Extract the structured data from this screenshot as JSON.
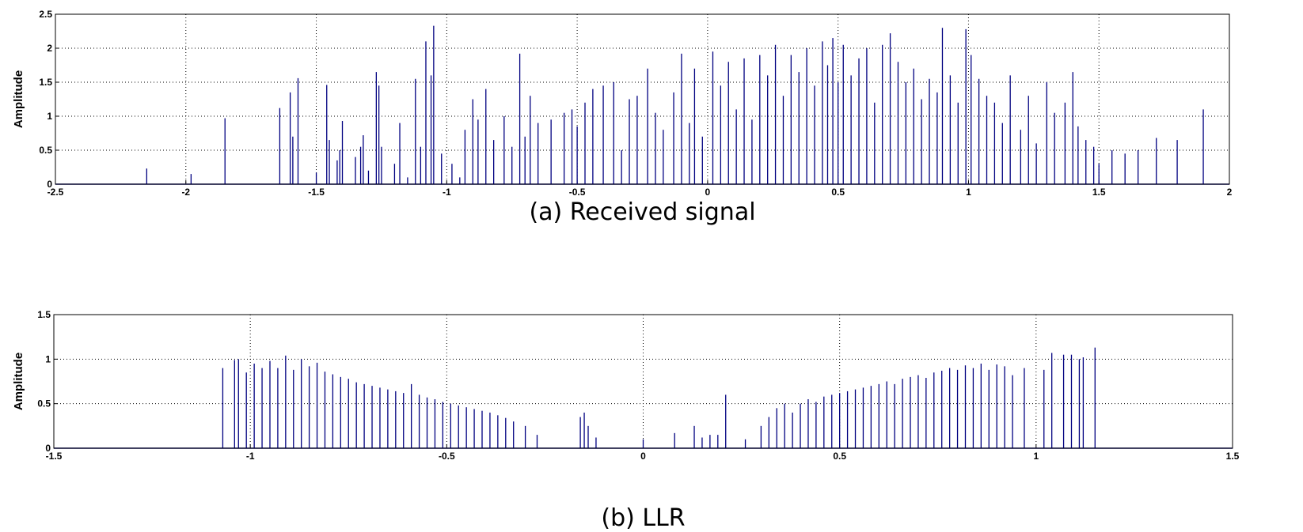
{
  "chart_data": [
    {
      "type": "stem",
      "caption": "(a) Received signal",
      "y_label": "Amplitude",
      "color": "#000080",
      "grid": true,
      "xlim": [
        -2.5,
        2
      ],
      "xticks": [
        -2.5,
        -2,
        -1.5,
        -1,
        -0.5,
        0,
        0.5,
        1,
        1.5,
        2
      ],
      "ylim": [
        0,
        2.5
      ],
      "yticks": [
        0,
        0.5,
        1,
        1.5,
        2,
        2.5
      ],
      "x": [
        -2.15,
        -1.98,
        -1.85,
        -1.64,
        -1.6,
        -1.59,
        -1.57,
        -1.5,
        -1.46,
        -1.45,
        -1.42,
        -1.41,
        -1.4,
        -1.35,
        -1.33,
        -1.32,
        -1.3,
        -1.27,
        -1.26,
        -1.25,
        -1.2,
        -1.18,
        -1.15,
        -1.12,
        -1.1,
        -1.08,
        -1.06,
        -1.05,
        -1.02,
        -0.98,
        -0.95,
        -0.93,
        -0.9,
        -0.88,
        -0.85,
        -0.82,
        -0.78,
        -0.75,
        -0.72,
        -0.7,
        -0.68,
        -0.65,
        -0.6,
        -0.55,
        -0.52,
        -0.5,
        -0.47,
        -0.44,
        -0.4,
        -0.36,
        -0.33,
        -0.3,
        -0.27,
        -0.23,
        -0.2,
        -0.17,
        -0.13,
        -0.1,
        -0.07,
        -0.05,
        -0.02,
        0.02,
        0.05,
        0.08,
        0.11,
        0.14,
        0.17,
        0.2,
        0.23,
        0.26,
        0.29,
        0.32,
        0.35,
        0.38,
        0.41,
        0.44,
        0.46,
        0.48,
        0.5,
        0.52,
        0.55,
        0.58,
        0.61,
        0.64,
        0.67,
        0.7,
        0.73,
        0.76,
        0.79,
        0.82,
        0.85,
        0.88,
        0.9,
        0.93,
        0.96,
        0.99,
        1.01,
        1.04,
        1.07,
        1.1,
        1.13,
        1.16,
        1.2,
        1.23,
        1.26,
        1.3,
        1.33,
        1.37,
        1.4,
        1.42,
        1.45,
        1.48,
        1.5,
        1.55,
        1.6,
        1.65,
        1.72,
        1.8,
        1.9
      ],
      "values": [
        0.23,
        0.15,
        0.97,
        1.12,
        1.35,
        0.7,
        1.56,
        0.17,
        1.46,
        0.65,
        0.35,
        0.5,
        0.93,
        0.4,
        0.55,
        0.72,
        0.2,
        1.65,
        1.45,
        0.55,
        0.3,
        0.9,
        0.1,
        1.55,
        0.55,
        2.1,
        1.6,
        2.33,
        0.45,
        0.3,
        0.1,
        0.8,
        1.25,
        0.95,
        1.4,
        0.65,
        1.0,
        0.55,
        1.92,
        0.7,
        1.3,
        0.9,
        0.95,
        1.05,
        1.1,
        0.85,
        1.2,
        1.4,
        1.45,
        1.5,
        0.5,
        1.25,
        1.3,
        1.7,
        1.05,
        0.8,
        1.35,
        1.92,
        0.9,
        1.7,
        0.7,
        1.95,
        1.45,
        1.8,
        1.1,
        1.85,
        0.95,
        1.9,
        1.6,
        2.05,
        1.3,
        1.9,
        1.65,
        2.0,
        1.45,
        2.1,
        1.75,
        2.15,
        1.5,
        2.05,
        1.6,
        1.85,
        2.0,
        1.2,
        2.05,
        2.22,
        1.8,
        1.5,
        1.7,
        1.25,
        1.55,
        1.35,
        2.3,
        1.6,
        1.2,
        2.28,
        1.9,
        1.55,
        1.3,
        1.2,
        0.9,
        1.6,
        0.8,
        1.3,
        0.6,
        1.5,
        1.05,
        1.2,
        1.65,
        0.85,
        0.65,
        0.55,
        0.3,
        0.5,
        0.45,
        0.5,
        0.68,
        0.65,
        1.1
      ]
    },
    {
      "type": "stem",
      "caption": "(b) LLR",
      "y_label": "Amplitude",
      "color": "#000080",
      "grid": true,
      "xlim": [
        -1.5,
        1.5
      ],
      "xticks": [
        -1.5,
        -1,
        -0.5,
        0,
        0.5,
        1,
        1.5
      ],
      "ylim": [
        0,
        1.5
      ],
      "yticks": [
        0,
        0.5,
        1,
        1.5
      ],
      "x": [
        -1.07,
        -1.04,
        -1.03,
        -1.01,
        -0.99,
        -0.97,
        -0.95,
        -0.93,
        -0.91,
        -0.89,
        -0.87,
        -0.85,
        -0.83,
        -0.81,
        -0.79,
        -0.77,
        -0.75,
        -0.73,
        -0.71,
        -0.69,
        -0.67,
        -0.65,
        -0.63,
        -0.61,
        -0.59,
        -0.57,
        -0.55,
        -0.53,
        -0.51,
        -0.49,
        -0.47,
        -0.45,
        -0.43,
        -0.41,
        -0.39,
        -0.37,
        -0.35,
        -0.33,
        -0.3,
        -0.27,
        -0.16,
        -0.15,
        -0.14,
        -0.12,
        0,
        0.08,
        0.13,
        0.15,
        0.17,
        0.19,
        0.21,
        0.26,
        0.3,
        0.32,
        0.34,
        0.36,
        0.38,
        0.4,
        0.42,
        0.44,
        0.46,
        0.48,
        0.5,
        0.52,
        0.54,
        0.56,
        0.58,
        0.6,
        0.62,
        0.64,
        0.66,
        0.68,
        0.7,
        0.72,
        0.74,
        0.76,
        0.78,
        0.8,
        0.82,
        0.84,
        0.86,
        0.88,
        0.9,
        0.92,
        0.94,
        0.97,
        1.02,
        1.04,
        1.07,
        1.09,
        1.11,
        1.12,
        1.15
      ],
      "values": [
        0.9,
        0.99,
        1.0,
        0.85,
        0.95,
        0.9,
        0.98,
        0.9,
        1.04,
        0.88,
        1.0,
        0.92,
        0.96,
        0.86,
        0.83,
        0.8,
        0.78,
        0.74,
        0.72,
        0.7,
        0.68,
        0.66,
        0.64,
        0.62,
        0.72,
        0.6,
        0.57,
        0.55,
        0.52,
        0.5,
        0.48,
        0.46,
        0.44,
        0.42,
        0.4,
        0.37,
        0.34,
        0.3,
        0.25,
        0.15,
        0.35,
        0.4,
        0.25,
        0.12,
        0.1,
        0.17,
        0.25,
        0.12,
        0.15,
        0.15,
        0.6,
        0.1,
        0.25,
        0.35,
        0.45,
        0.5,
        0.4,
        0.5,
        0.55,
        0.52,
        0.58,
        0.6,
        0.62,
        0.64,
        0.66,
        0.68,
        0.7,
        0.72,
        0.75,
        0.72,
        0.78,
        0.8,
        0.82,
        0.79,
        0.85,
        0.87,
        0.9,
        0.88,
        0.93,
        0.9,
        0.95,
        0.88,
        0.94,
        0.92,
        0.82,
        0.9,
        0.88,
        1.07,
        1.05,
        1.05,
        1.0,
        1.02,
        1.13
      ]
    }
  ]
}
